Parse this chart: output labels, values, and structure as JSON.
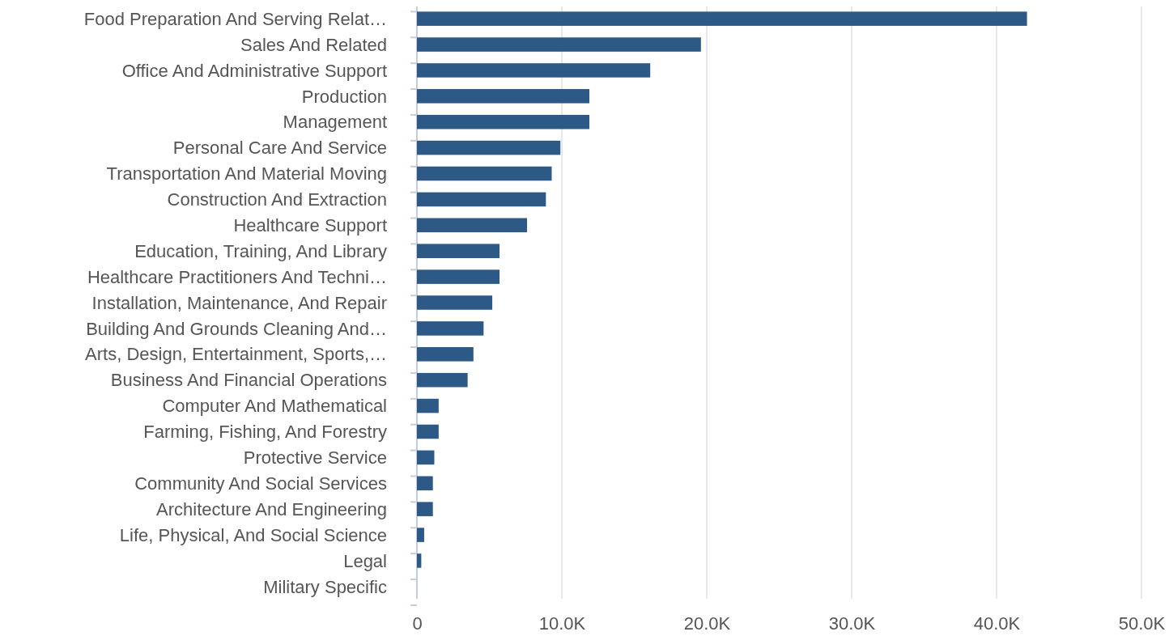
{
  "chart_data": {
    "type": "bar",
    "orientation": "horizontal",
    "categories": [
      "Food Preparation And Serving Relat…",
      "Sales And Related",
      "Office And Administrative Support",
      "Production",
      "Management",
      "Personal Care And Service",
      "Transportation And Material Moving",
      "Construction And Extraction",
      "Healthcare Support",
      "Education, Training, And Library",
      "Healthcare Practitioners And Techni…",
      "Installation, Maintenance, And Repair",
      "Building And Grounds Cleaning And…",
      "Arts, Design, Entertainment, Sports,…",
      "Business And Financial Operations",
      "Computer And Mathematical",
      "Farming, Fishing, And Forestry",
      "Protective Service",
      "Community And Social Services",
      "Architecture And Engineering",
      "Life, Physical, And Social Science",
      "Legal",
      "Military Specific"
    ],
    "values": [
      42100,
      19600,
      16100,
      11900,
      11900,
      9900,
      9300,
      8900,
      7600,
      5700,
      5700,
      5200,
      4600,
      3900,
      3500,
      1500,
      1500,
      1200,
      1100,
      1100,
      500,
      300,
      0
    ],
    "color": "#2d5986",
    "xlim": [
      0,
      50000
    ],
    "xticks": [
      0,
      {
        "value": 10000,
        "label": "10.0K"
      },
      {
        "value": 20000,
        "label": "20.0K"
      },
      {
        "value": 30000,
        "label": "30.0K"
      },
      {
        "value": 40000,
        "label": "40.0K"
      },
      {
        "value": 50000,
        "label": "50.0K"
      }
    ],
    "grid": "x"
  }
}
